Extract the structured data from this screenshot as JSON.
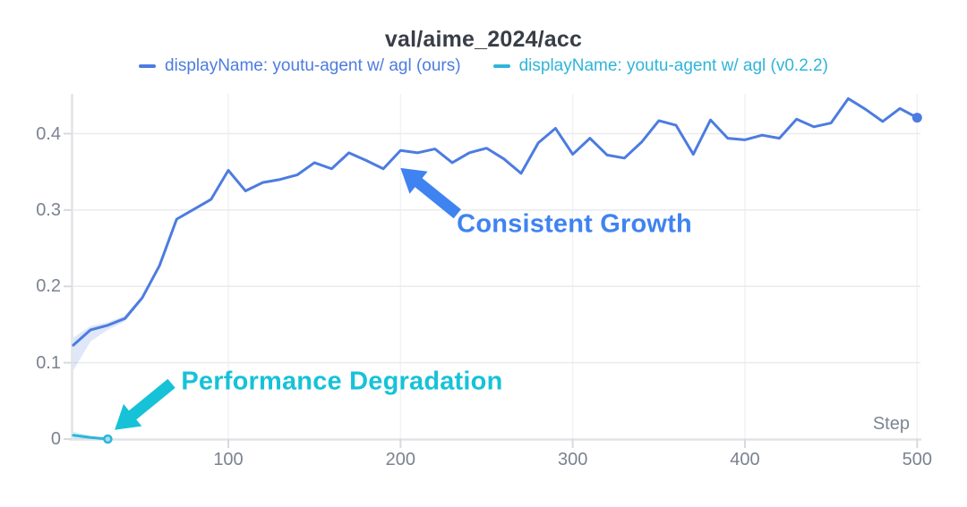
{
  "header": {
    "title": "val/aime_2024/acc"
  },
  "legend": [
    {
      "label": "displayName: youtu-agent w/ agl (ours)",
      "color": "#4c7ce0"
    },
    {
      "label": "displayName: youtu-agent w/ agl (v0.2.2)",
      "color": "#2fb5d8"
    }
  ],
  "axes": {
    "x_label": "Step"
  },
  "colors": {
    "grid_h": "#eaebee",
    "grid_v": "#f1f2f5",
    "axis_line": "#e1e3e7",
    "tick_mark": "#d7dade",
    "tick_text": "#7b8290",
    "title_text": "#383e47"
  },
  "chart_data": {
    "type": "line",
    "title": "val/aime_2024/acc",
    "xlabel": "Step",
    "ylabel": "",
    "xlim": [
      9,
      501
    ],
    "ylim": [
      0,
      0.452
    ],
    "x_ticks": [
      100,
      200,
      300,
      400,
      500
    ],
    "y_ticks": [
      0,
      0.1,
      0.2,
      0.3,
      0.4
    ],
    "grid": true,
    "legend_position": "top",
    "series": [
      {
        "name": "displayName: youtu-agent w/ agl (ours)",
        "color": "#4c7ce0",
        "end_marker": true,
        "x": [
          10,
          20,
          30,
          40,
          50,
          60,
          70,
          80,
          90,
          100,
          110,
          120,
          130,
          140,
          150,
          160,
          170,
          180,
          190,
          200,
          210,
          220,
          230,
          240,
          250,
          260,
          270,
          280,
          290,
          300,
          310,
          320,
          330,
          340,
          350,
          360,
          370,
          380,
          390,
          400,
          410,
          420,
          430,
          440,
          450,
          460,
          470,
          480,
          490,
          500
        ],
        "values": [
          0.123,
          0.143,
          0.149,
          0.158,
          0.185,
          0.227,
          0.288,
          0.301,
          0.314,
          0.352,
          0.325,
          0.336,
          0.34,
          0.346,
          0.362,
          0.354,
          0.375,
          0.365,
          0.354,
          0.378,
          0.375,
          0.38,
          0.362,
          0.375,
          0.381,
          0.367,
          0.348,
          0.388,
          0.407,
          0.373,
          0.394,
          0.372,
          0.368,
          0.389,
          0.417,
          0.411,
          0.373,
          0.418,
          0.394,
          0.392,
          0.398,
          0.394,
          0.419,
          0.409,
          0.414,
          0.446,
          0.432,
          0.416,
          0.433,
          0.421
        ],
        "band": {
          "x": [
            10,
            20,
            30,
            40,
            50,
            60
          ],
          "upper": [
            0.133,
            0.148,
            0.153,
            0.162,
            0.188,
            0.227
          ],
          "lower": [
            0.09,
            0.128,
            0.143,
            0.154,
            0.182,
            0.227
          ]
        }
      },
      {
        "name": "displayName: youtu-agent w/ agl (v0.2.2)",
        "color": "#2fb5d8",
        "end_marker": true,
        "marker_fill": "#9fe2ef",
        "x": [
          10,
          20,
          30
        ],
        "values": [
          0.005,
          0.002,
          0.0
        ],
        "band": {
          "x": [
            10,
            20,
            30
          ],
          "upper": [
            0.01,
            0.004,
            0.001
          ],
          "lower": [
            0.0,
            0.0,
            0.0
          ]
        }
      }
    ],
    "annotations": [
      {
        "text": "Consistent Growth",
        "color": "#3f83f1",
        "text_at": {
          "step": 301,
          "value": 0.281
        },
        "arrow": {
          "tip": {
            "step": 200,
            "value": 0.355
          },
          "tail": {
            "step": 233,
            "value": 0.295
          }
        }
      },
      {
        "text": "Performance Degradation",
        "color": "#16c2d8",
        "text_at": {
          "step": 166,
          "value": 0.075
        },
        "arrow": {
          "tip": {
            "step": 34,
            "value": 0.012
          },
          "tail": {
            "step": 67,
            "value": 0.073
          }
        }
      }
    ]
  }
}
